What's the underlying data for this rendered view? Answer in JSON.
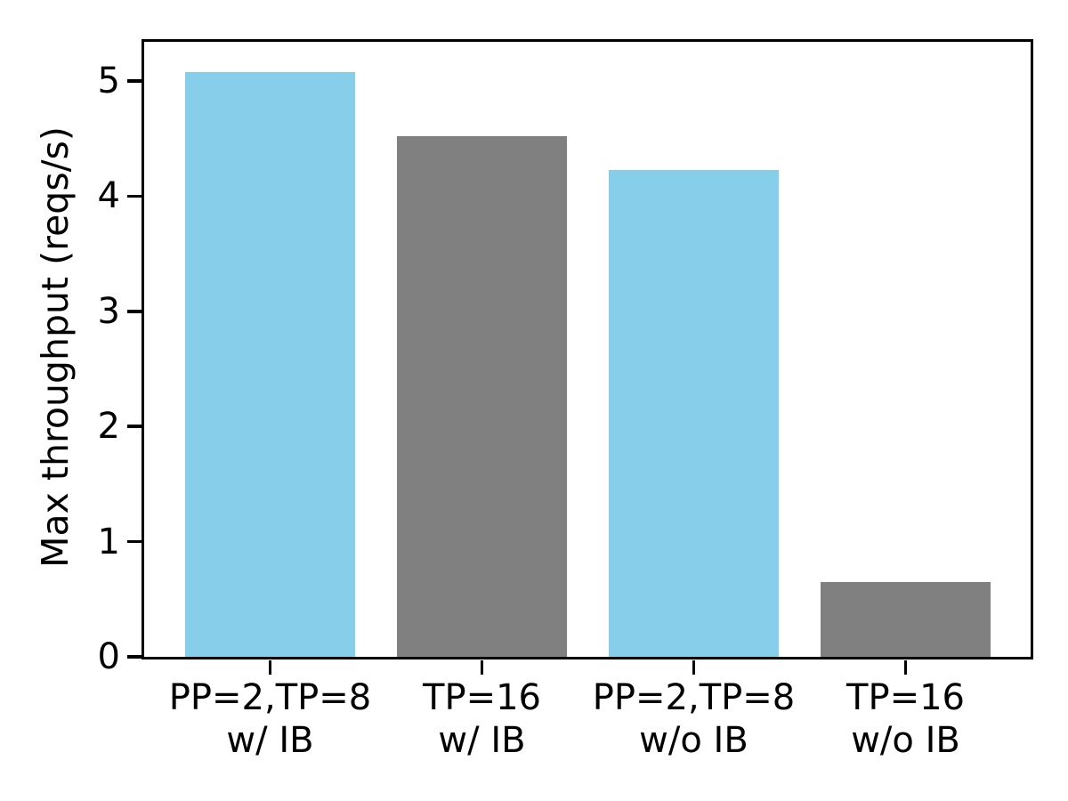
{
  "figure": {
    "background_color": "#ffffff",
    "axis_color": "#000000",
    "text_color": "#000000"
  },
  "chart_data": {
    "type": "bar",
    "title": "",
    "xlabel": "",
    "ylabel": "Max throughput (reqs/s)",
    "categories": [
      "PP=2,TP=8\nw/ IB",
      "TP=16\nw/ IB",
      "PP=2,TP=8\nw/o IB",
      "TP=16\nw/o IB"
    ],
    "values": [
      5.08,
      4.52,
      4.23,
      0.65
    ],
    "bar_colors": [
      "#87ceeb",
      "#808080",
      "#87ceeb",
      "#808080"
    ],
    "color_legend": {
      "#87ceeb": "skyblue (PP=2,TP=8 configs)",
      "#808080": "gray (TP=16 configs)"
    },
    "yticks": [
      0,
      1,
      2,
      3,
      4,
      5
    ],
    "ylim": [
      0,
      5.34
    ],
    "grid": false,
    "legend_position": "none"
  }
}
